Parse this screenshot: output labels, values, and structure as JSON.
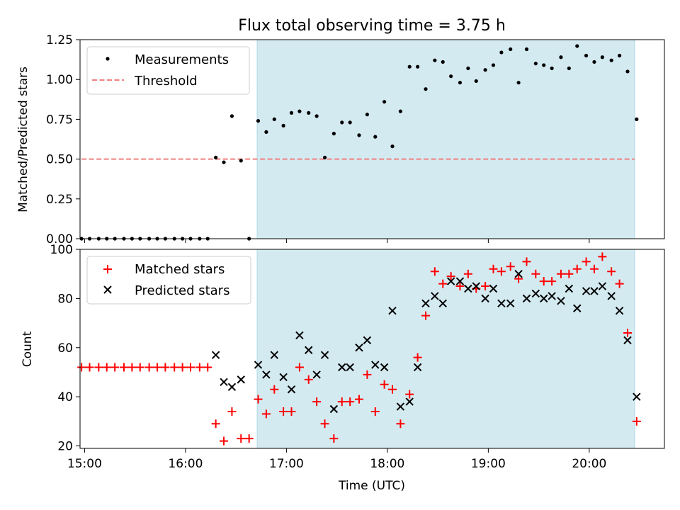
{
  "chart_data": [
    {
      "type": "scatter",
      "title": "Flux total observing time = 3.75 h",
      "ylabel": "Matched/Predicted stars",
      "xlabel": "",
      "xlim": [
        14.955,
        20.745
      ],
      "ylim": [
        0,
        1.25
      ],
      "yticks": [
        0,
        0.25,
        0.5,
        0.75,
        1.0,
        1.25
      ],
      "ytick_labels": [
        "0.00",
        "0.25",
        "0.50",
        "0.75",
        "1.00",
        "1.25"
      ],
      "xticks": [
        15,
        16,
        17,
        18,
        19,
        20
      ],
      "shaded_interval": [
        16.71,
        20.45
      ],
      "shade_color": "#d4eaf1",
      "threshold": 0.5,
      "threshold_range": [
        14.97,
        20.45
      ],
      "threshold_color": "#f08080",
      "legend_placement": "top-left",
      "legend": [
        "Measurements",
        "Threshold"
      ],
      "series": [
        {
          "name": "Measurements",
          "marker": "dot",
          "color": "#000000",
          "x": [
            14.97,
            15.05,
            15.14,
            15.22,
            15.3,
            15.39,
            15.47,
            15.55,
            15.64,
            15.72,
            15.8,
            15.89,
            15.97,
            16.05,
            16.14,
            16.22,
            16.3,
            16.38,
            16.46,
            16.55,
            16.63,
            16.72,
            16.8,
            16.88,
            16.97,
            17.05,
            17.13,
            17.22,
            17.3,
            17.38,
            17.47,
            17.55,
            17.63,
            17.72,
            17.8,
            17.88,
            17.97,
            18.05,
            18.13,
            18.22,
            18.3,
            18.38,
            18.47,
            18.55,
            18.63,
            18.72,
            18.8,
            18.88,
            18.97,
            19.05,
            19.13,
            19.22,
            19.3,
            19.38,
            19.47,
            19.55,
            19.63,
            19.72,
            19.8,
            19.88,
            19.97,
            20.05,
            20.13,
            20.22,
            20.3,
            20.38,
            20.47
          ],
          "y": [
            0,
            0,
            0,
            0,
            0,
            0,
            0,
            0,
            0,
            0,
            0,
            0,
            0,
            0,
            0,
            0,
            0.51,
            0.48,
            0.77,
            0.49,
            0,
            0.74,
            0.67,
            0.75,
            0.71,
            0.79,
            0.8,
            0.79,
            0.77,
            0.51,
            0.66,
            0.73,
            0.73,
            0.65,
            0.78,
            0.64,
            0.86,
            0.58,
            0.8,
            1.08,
            1.08,
            0.94,
            1.12,
            1.11,
            1.02,
            0.98,
            1.07,
            0.99,
            1.06,
            1.09,
            1.17,
            1.19,
            0.98,
            1.19,
            1.1,
            1.09,
            1.07,
            1.14,
            1.07,
            1.21,
            1.15,
            1.11,
            1.14,
            1.12,
            1.15,
            1.05,
            0.75
          ]
        }
      ]
    },
    {
      "type": "scatter",
      "title": "",
      "ylabel": "Count",
      "xlabel": "Time (UTC)",
      "xlim": [
        14.955,
        20.745
      ],
      "ylim": [
        19,
        100
      ],
      "yticks": [
        20,
        40,
        60,
        80,
        100
      ],
      "ytick_labels": [
        "20",
        "40",
        "60",
        "80",
        "100"
      ],
      "xticks": [
        15,
        16,
        17,
        18,
        19,
        20
      ],
      "xtick_labels": [
        "15:00",
        "16:00",
        "17:00",
        "18:00",
        "19:00",
        "20:00"
      ],
      "shaded_interval": [
        16.71,
        20.45
      ],
      "shade_color": "#d4eaf1",
      "legend_placement": "top-left",
      "legend": [
        "Matched stars",
        "Predicted stars"
      ],
      "series": [
        {
          "name": "Matched stars",
          "marker": "plus",
          "color": "#ff0000",
          "x": [
            14.97,
            15.05,
            15.14,
            15.22,
            15.3,
            15.39,
            15.47,
            15.55,
            15.64,
            15.72,
            15.8,
            15.89,
            15.97,
            16.05,
            16.14,
            16.22,
            16.3,
            16.38,
            16.46,
            16.55,
            16.63,
            16.72,
            16.8,
            16.88,
            16.97,
            17.05,
            17.13,
            17.22,
            17.3,
            17.38,
            17.47,
            17.55,
            17.63,
            17.72,
            17.8,
            17.88,
            17.97,
            18.05,
            18.13,
            18.22,
            18.3,
            18.38,
            18.47,
            18.55,
            18.63,
            18.72,
            18.8,
            18.88,
            18.97,
            19.05,
            19.13,
            19.22,
            19.3,
            19.38,
            19.47,
            19.55,
            19.63,
            19.72,
            19.8,
            19.88,
            19.97,
            20.05,
            20.13,
            20.22,
            20.3,
            20.38,
            20.47
          ],
          "y": [
            52,
            52,
            52,
            52,
            52,
            52,
            52,
            52,
            52,
            52,
            52,
            52,
            52,
            52,
            52,
            52,
            29,
            22,
            34,
            23,
            23,
            39,
            33,
            43,
            34,
            34,
            52,
            47,
            38,
            29,
            23,
            38,
            38,
            39,
            49,
            34,
            45,
            43,
            29,
            41,
            56,
            73,
            91,
            86,
            89,
            85,
            90,
            84,
            85,
            92,
            91,
            93,
            88,
            95,
            90,
            87,
            87,
            90,
            90,
            92,
            95,
            92,
            97,
            91,
            86,
            66,
            30
          ]
        },
        {
          "name": "Predicted stars",
          "marker": "x",
          "color": "#000000",
          "x": [
            16.3,
            16.38,
            16.46,
            16.55,
            16.72,
            16.8,
            16.88,
            16.97,
            17.05,
            17.13,
            17.22,
            17.3,
            17.38,
            17.47,
            17.55,
            17.63,
            17.72,
            17.8,
            17.88,
            17.97,
            18.05,
            18.13,
            18.22,
            18.3,
            18.38,
            18.47,
            18.55,
            18.63,
            18.72,
            18.8,
            18.88,
            18.97,
            19.05,
            19.13,
            19.22,
            19.3,
            19.38,
            19.47,
            19.55,
            19.63,
            19.72,
            19.8,
            19.88,
            19.97,
            20.05,
            20.13,
            20.22,
            20.3,
            20.38,
            20.47
          ],
          "y": [
            57,
            46,
            44,
            47,
            53,
            49,
            57,
            48,
            43,
            65,
            59,
            49,
            57,
            35,
            52,
            52,
            60,
            63,
            53,
            52,
            75,
            36,
            38,
            52,
            78,
            81,
            78,
            87,
            87,
            84,
            85,
            80,
            84,
            78,
            78,
            90,
            80,
            82,
            80,
            81,
            79,
            84,
            76,
            83,
            83,
            85,
            81,
            75,
            63,
            40
          ]
        }
      ]
    }
  ]
}
